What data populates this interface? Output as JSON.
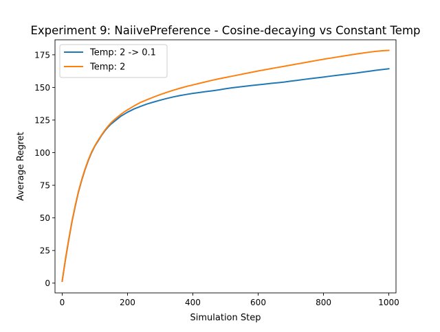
{
  "chart_data": {
    "type": "line",
    "title": "Experiment 9: NaiivePreference - Cosine-decaying vs Constant Temp",
    "xlabel": "Simulation Step",
    "ylabel": "Average Regret",
    "xlim": [
      -22,
      1022
    ],
    "ylim": [
      -7.5,
      186.5
    ],
    "xticks": [
      0,
      200,
      400,
      600,
      800,
      1000
    ],
    "xtick_labels": [
      "0",
      "200",
      "400",
      "600",
      "800",
      "1000"
    ],
    "yticks": [
      0,
      25,
      50,
      75,
      100,
      125,
      150,
      175
    ],
    "ytick_labels": [
      "0",
      "25",
      "50",
      "75",
      "100",
      "125",
      "150",
      "175"
    ],
    "grid": false,
    "legend_position": "upper-left",
    "series": [
      {
        "name": "Temp: 2 -> 0.1",
        "color": "#1f77b4",
        "x": [
          0,
          10,
          20,
          30,
          40,
          50,
          60,
          70,
          80,
          90,
          100,
          110,
          120,
          130,
          140,
          150,
          160,
          170,
          180,
          190,
          200,
          220,
          240,
          260,
          280,
          300,
          320,
          340,
          360,
          380,
          400,
          420,
          440,
          460,
          480,
          500,
          520,
          540,
          560,
          580,
          600,
          620,
          640,
          660,
          680,
          700,
          720,
          740,
          760,
          780,
          800,
          820,
          840,
          860,
          880,
          900,
          920,
          940,
          960,
          980,
          1000
        ],
        "y": [
          1.5,
          18,
          33,
          47,
          59,
          70,
          79,
          87,
          94,
          100,
          105,
          109,
          113,
          116.5,
          119.5,
          122,
          124,
          126,
          128,
          129.5,
          131,
          133.5,
          135.5,
          137.3,
          138.8,
          140.2,
          141.5,
          142.7,
          143.7,
          144.6,
          145.4,
          146.1,
          146.8,
          147.4,
          148.1,
          149,
          149.7,
          150.3,
          150.9,
          151.5,
          152,
          152.5,
          153.1,
          153.6,
          154.1,
          154.8,
          155.4,
          156.1,
          156.7,
          157.3,
          157.9,
          158.6,
          159.2,
          159.8,
          160.4,
          161,
          161.7,
          162.4,
          163.1,
          163.7,
          164.3
        ]
      },
      {
        "name": "Temp: 2",
        "color": "#ff7f0e",
        "x": [
          0,
          10,
          20,
          30,
          40,
          50,
          60,
          70,
          80,
          90,
          100,
          110,
          120,
          130,
          140,
          150,
          160,
          170,
          180,
          190,
          200,
          220,
          240,
          260,
          280,
          300,
          320,
          340,
          360,
          380,
          400,
          420,
          440,
          460,
          480,
          500,
          520,
          540,
          560,
          580,
          600,
          620,
          640,
          660,
          680,
          700,
          720,
          740,
          760,
          780,
          800,
          820,
          840,
          860,
          880,
          900,
          920,
          940,
          960,
          980,
          1000
        ],
        "y": [
          1.5,
          18.5,
          33.5,
          47.5,
          59.5,
          70.5,
          79.5,
          87.5,
          94.5,
          100.5,
          105.3,
          109.5,
          113.3,
          117,
          120.2,
          123,
          125.3,
          127.4,
          129.4,
          131.2,
          132.8,
          135.8,
          138.5,
          140.6,
          142.6,
          144.5,
          146.2,
          147.8,
          149.3,
          150.7,
          151.9,
          153.1,
          154.3,
          155.5,
          156.6,
          157.6,
          158.6,
          159.6,
          160.6,
          161.6,
          162.6,
          163.5,
          164.4,
          165.3,
          166.2,
          167.1,
          168,
          168.9,
          169.8,
          170.7,
          171.6,
          172.4,
          173.2,
          174,
          174.8,
          175.6,
          176.3,
          177,
          177.6,
          178.1,
          178.4
        ]
      }
    ]
  }
}
